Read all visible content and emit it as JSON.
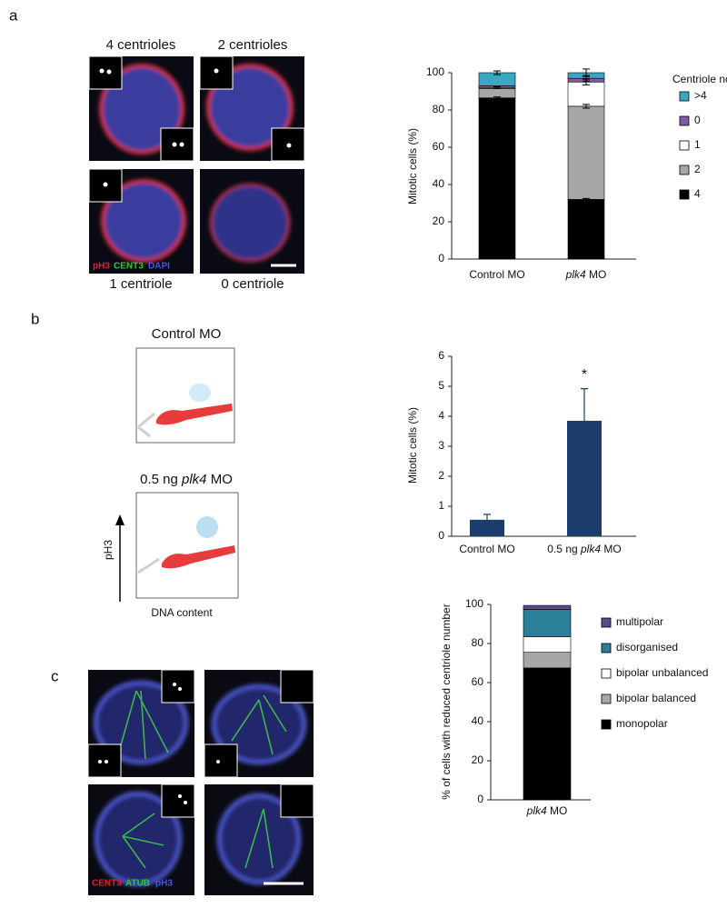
{
  "panels": {
    "a": {
      "label": "a",
      "captions": [
        "4 centrioles",
        "2 centrioles",
        "1 centriole",
        "0 centriole"
      ],
      "stains": [
        "pH3",
        "CENT3",
        "DAPI"
      ]
    },
    "b": {
      "label": "b",
      "plot_titles": [
        "Control MO",
        "0.5 ng plk4 MO"
      ],
      "y_label": "pH3",
      "x_label": "DNA content"
    },
    "c": {
      "label": "c",
      "stains": [
        "CENT3",
        "ATUB",
        "pH3"
      ]
    }
  },
  "chart_data": [
    {
      "type": "stacked_bar",
      "y_label": "Mitotic cells (%)",
      "legend_title": "Centriole no",
      "categories": [
        "Control MO",
        "plk4 MO"
      ],
      "series": [
        {
          "name": "4",
          "color": "#000000",
          "values": [
            86.5,
            32
          ],
          "errors": [
            0.5,
            0.5
          ]
        },
        {
          "name": "2",
          "color": "#a6a6a6",
          "values": [
            5,
            50
          ],
          "errors": [
            null,
            1
          ]
        },
        {
          "name": "1",
          "color": "#ffffff",
          "values": [
            0.5,
            13
          ],
          "errors": [
            0.5,
            1.5
          ]
        },
        {
          "name": "0",
          "color": "#7f5ba6",
          "values": [
            1,
            2
          ],
          "errors": [
            null,
            1.5
          ]
        },
        {
          "name": ">4",
          "color": "#3aa8c1",
          "values": [
            7,
            3
          ],
          "errors": [
            1,
            2
          ]
        }
      ],
      "ylim": [
        0,
        100
      ],
      "yticks": [
        0,
        20,
        40,
        60,
        80,
        100
      ]
    },
    {
      "type": "bar",
      "y_label": "Mitotic cells (%)",
      "categories": [
        "Control MO",
        "0.5 ng plk4 MO"
      ],
      "values": [
        0.55,
        3.85
      ],
      "errors": [
        0.18,
        1.07
      ],
      "color": "#1c3d6b",
      "annotation": "*",
      "ylim": [
        0,
        6
      ],
      "yticks": [
        0,
        1,
        2,
        3,
        4,
        5,
        6
      ]
    },
    {
      "type": "stacked_bar",
      "y_label": "% of cells with reduced centriole number",
      "categories": [
        "plk4 MO"
      ],
      "series": [
        {
          "name": "monopolar",
          "color": "#000000",
          "values": [
            67.5
          ]
        },
        {
          "name": "bipolar balanced",
          "color": "#a6a6a6",
          "values": [
            8
          ]
        },
        {
          "name": "bipolar unbalanced",
          "color": "#ffffff",
          "values": [
            8
          ]
        },
        {
          "name": "disorganised",
          "color": "#2b7f99",
          "values": [
            14
          ]
        },
        {
          "name": "multipolar",
          "color": "#5a4a8c",
          "values": [
            2
          ]
        }
      ],
      "ylim": [
        0,
        100
      ],
      "yticks": [
        0,
        20,
        40,
        60,
        80,
        100
      ]
    }
  ]
}
